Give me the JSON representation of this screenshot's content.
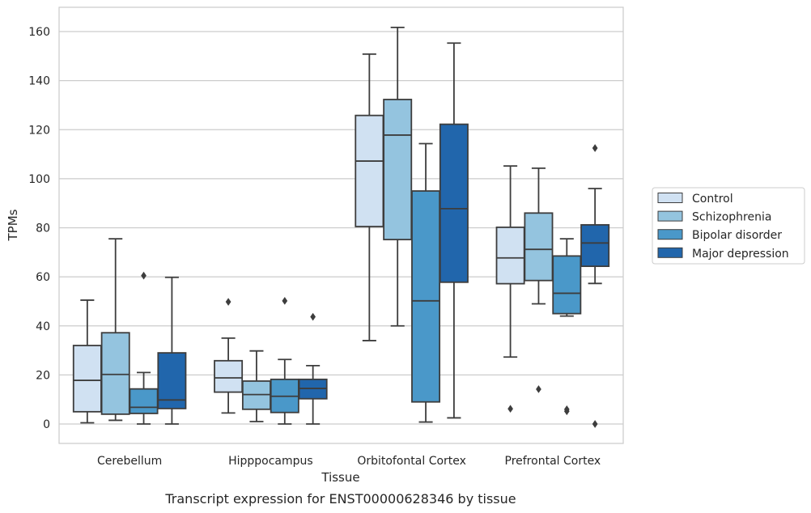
{
  "caption": "Transcript expression for ENST00000628346 by tissue",
  "chart_data": {
    "type": "box",
    "title": "",
    "xlabel": "Tissue",
    "ylabel": "TPMs",
    "ylim": [
      -8,
      170
    ],
    "yticks": [
      0,
      20,
      40,
      60,
      80,
      100,
      120,
      140,
      160
    ],
    "grid": true,
    "legend_position": "right",
    "categories": [
      "Cerebellum",
      "Hipppocampus",
      "Orbitofontal Cortex",
      "Prefrontal Cortex"
    ],
    "series": [
      {
        "name": "Control",
        "color": "#d0e1f2",
        "boxes": [
          {
            "whisker_low": 0.5,
            "q1": 5,
            "median": 17.8,
            "q3": 32,
            "whisker_high": 50.5,
            "outliers": []
          },
          {
            "whisker_low": 4.5,
            "q1": 13,
            "median": 18.8,
            "q3": 25.8,
            "whisker_high": 35,
            "outliers": [
              49.8
            ]
          },
          {
            "whisker_low": 34,
            "q1": 80.5,
            "median": 107.2,
            "q3": 125.8,
            "whisker_high": 150.8,
            "outliers": []
          },
          {
            "whisker_low": 27.3,
            "q1": 57.2,
            "median": 67.7,
            "q3": 80.2,
            "whisker_high": 105.2,
            "outliers": [
              6.2
            ]
          }
        ]
      },
      {
        "name": "Schizophrenia",
        "color": "#94c4df",
        "boxes": [
          {
            "whisker_low": 1.5,
            "q1": 4,
            "median": 20.2,
            "q3": 37.2,
            "whisker_high": 75.5,
            "outliers": []
          },
          {
            "whisker_low": 1,
            "q1": 6,
            "median": 12,
            "q3": 17.5,
            "whisker_high": 29.8,
            "outliers": []
          },
          {
            "whisker_low": 40,
            "q1": 75.2,
            "median": 117.8,
            "q3": 132.3,
            "whisker_high": 161.7,
            "outliers": []
          },
          {
            "whisker_low": 49,
            "q1": 58.5,
            "median": 71.2,
            "q3": 86,
            "whisker_high": 104.3,
            "outliers": [
              14.2
            ]
          }
        ]
      },
      {
        "name": "Bipolar disorder",
        "color": "#4a98c9",
        "boxes": [
          {
            "whisker_low": 0,
            "q1": 4.3,
            "median": 6.8,
            "q3": 14.3,
            "whisker_high": 21,
            "outliers": [
              60.5
            ]
          },
          {
            "whisker_low": 0,
            "q1": 4.7,
            "median": 11.3,
            "q3": 18.2,
            "whisker_high": 26.3,
            "outliers": [
              50.2
            ]
          },
          {
            "whisker_low": 0.8,
            "q1": 9,
            "median": 50.2,
            "q3": 95,
            "whisker_high": 114.3,
            "outliers": []
          },
          {
            "whisker_low": 44,
            "q1": 45,
            "median": 53.3,
            "q3": 68.5,
            "whisker_high": 75.5,
            "outliers": [
              5.2,
              6.0
            ]
          }
        ]
      },
      {
        "name": "Major depression",
        "color": "#2166ac",
        "boxes": [
          {
            "whisker_low": 0,
            "q1": 6.3,
            "median": 9.8,
            "q3": 29,
            "whisker_high": 59.8,
            "outliers": []
          },
          {
            "whisker_low": 0,
            "q1": 10.3,
            "median": 14.5,
            "q3": 18.2,
            "whisker_high": 23.8,
            "outliers": [
              43.7
            ]
          },
          {
            "whisker_low": 2.5,
            "q1": 57.8,
            "median": 87.8,
            "q3": 122.2,
            "whisker_high": 155.3,
            "outliers": []
          },
          {
            "whisker_low": 57.3,
            "q1": 64.3,
            "median": 73.8,
            "q3": 81.2,
            "whisker_high": 96,
            "outliers": [
              112.5,
              0
            ]
          }
        ]
      }
    ]
  }
}
